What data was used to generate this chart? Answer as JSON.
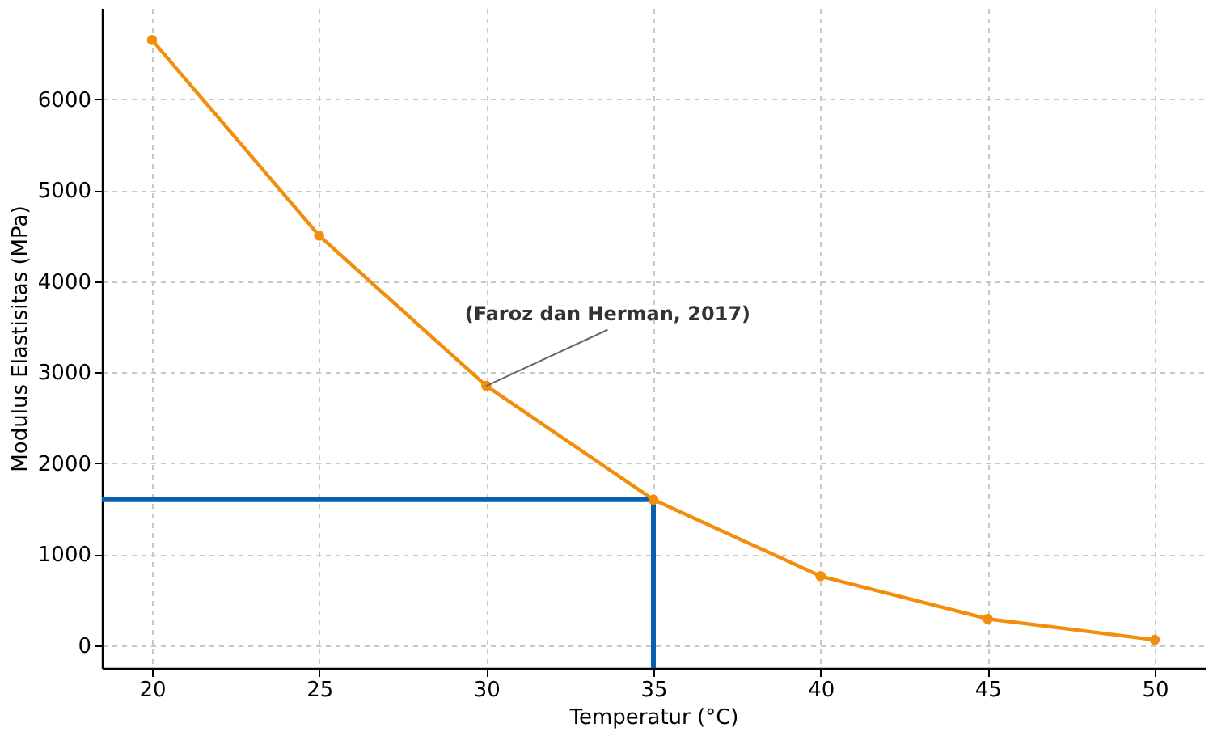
{
  "chart_data": {
    "type": "line",
    "xlabel": "Temperatur (°C)",
    "ylabel": "Modulus Elastisitas (MPa)",
    "xlim": [
      18.5,
      51.5
    ],
    "ylim": [
      -250,
      7000
    ],
    "xticks": [
      20,
      25,
      30,
      35,
      40,
      45,
      50
    ],
    "yticks": [
      0,
      1000,
      2000,
      3000,
      4000,
      5000,
      6000
    ],
    "grid": true,
    "marker": "circle",
    "series": [
      {
        "x": [
          20,
          25,
          30,
          35,
          40,
          45,
          50
        ],
        "values": [
          6650,
          4500,
          2850,
          1600,
          760,
          290,
          60
        ],
        "color": "#f28e0c"
      },
      {
        "x": [
          18.5,
          35,
          35
        ],
        "values": [
          1600,
          1600,
          -250
        ],
        "color": "#0b5fae",
        "marker": "none"
      }
    ],
    "annotations": [
      {
        "text": "(Faroz dan Herman,  2017)",
        "x": 30,
        "y": 2850
      }
    ]
  }
}
